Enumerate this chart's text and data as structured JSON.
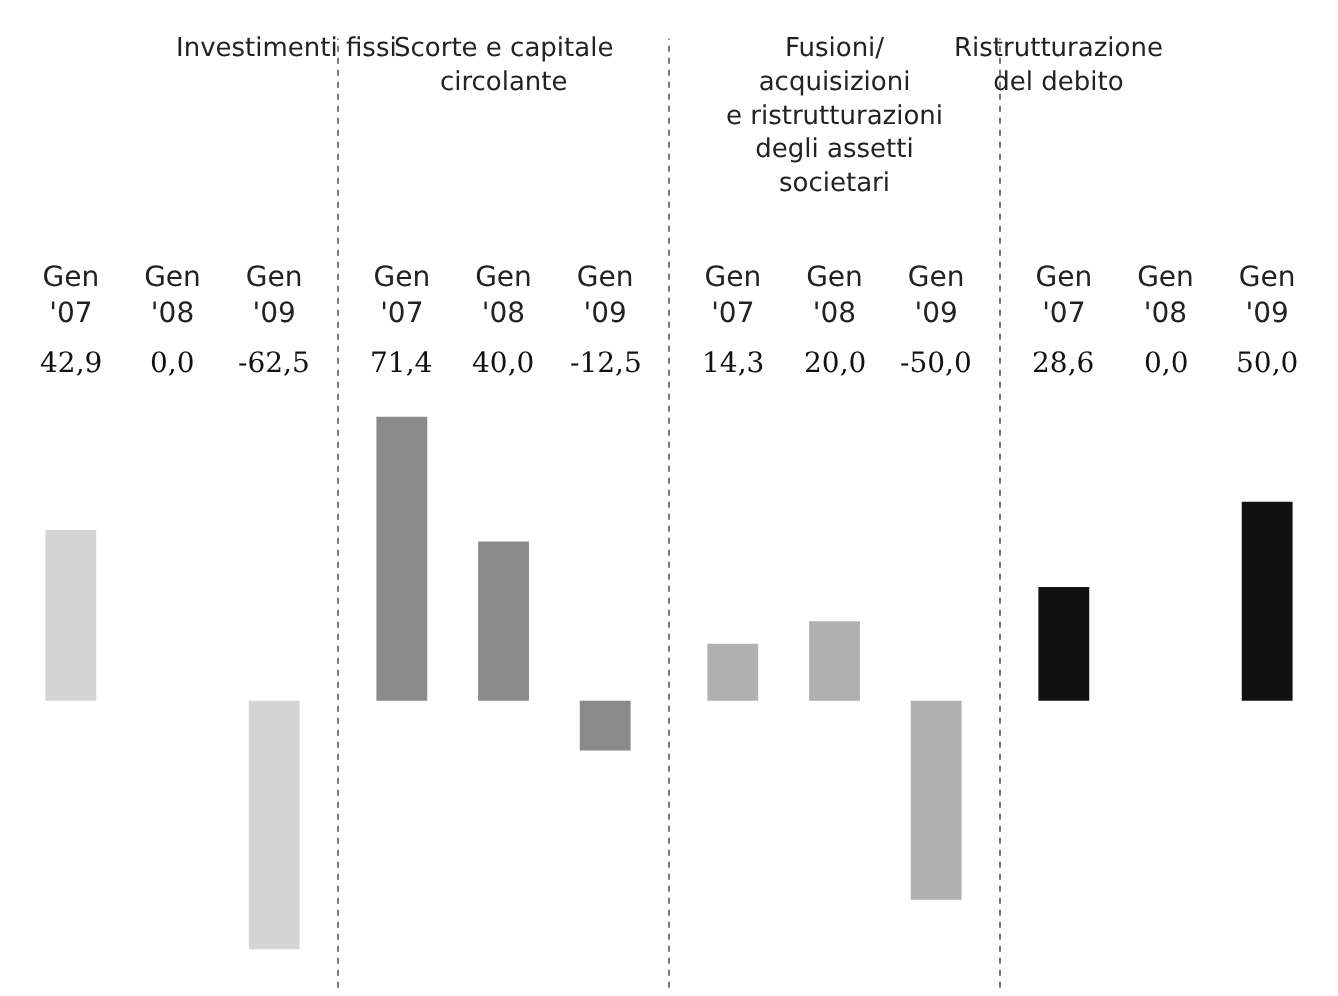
{
  "chart_data": [
    {
      "type": "bar",
      "title": "Investimenti fissi",
      "categories": [
        "Gen '07",
        "Gen '08",
        "Gen '09"
      ],
      "values": [
        42.9,
        0.0,
        -62.5
      ],
      "value_labels": [
        "42,9",
        "0,0",
        "-62,5"
      ],
      "color": "#d4d4d4"
    },
    {
      "type": "bar",
      "title": "Scorte e capitale\ncircolante",
      "categories": [
        "Gen '07",
        "Gen '08",
        "Gen '09"
      ],
      "values": [
        71.4,
        40.0,
        -12.5
      ],
      "value_labels": [
        "71,4",
        "40,0",
        "-12,5"
      ],
      "color": "#8a8a8a"
    },
    {
      "type": "bar",
      "title": "Fusioni/\nacquisizioni\ne ristrutturazioni\ndegli assetti\nsocietari",
      "categories": [
        "Gen '07",
        "Gen '08",
        "Gen '09"
      ],
      "values": [
        14.3,
        20.0,
        -50.0
      ],
      "value_labels": [
        "14,3",
        "20,0",
        "-50,0"
      ],
      "color": "#b0b0b0"
    },
    {
      "type": "bar",
      "title": "Ristrutturazione\ndel debito",
      "categories": [
        "Gen '07",
        "Gen '08",
        "Gen '09"
      ],
      "values": [
        28.6,
        0.0,
        50.0
      ],
      "value_labels": [
        "28,6",
        "0,0",
        "50,0"
      ],
      "color": "#111111"
    }
  ]
}
